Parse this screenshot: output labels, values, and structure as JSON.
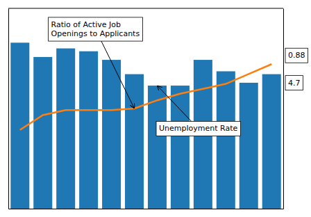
{
  "chart_data": {
    "type": "bar",
    "categories": [
      null,
      null,
      null,
      null,
      null,
      null,
      null,
      null,
      null,
      null,
      null,
      null
    ],
    "series": [
      {
        "type": "bar",
        "values": [
          5.8,
          5.3,
          5.6,
          5.5,
          5.2,
          4.7,
          4.3,
          4.3,
          5.2,
          4.8,
          4.4,
          4.7
        ]
      },
      {
        "type": "line",
        "axis": "y2",
        "values": [
          0.48,
          0.57,
          0.6,
          0.6,
          0.6,
          0.61,
          0.66,
          0.7,
          0.73,
          0.76,
          0.82,
          0.88
        ]
      }
    ],
    "ylim": [
      0,
      7.0
    ],
    "y2lim": [
      0.0,
      1.22
    ],
    "tick_labels": false,
    "annotations": [
      {
        "text": "Ratio of Active Job\nOpenings to Applicants",
        "series": 1,
        "index": 5
      },
      {
        "text": "Unemployment Rate",
        "series": 0,
        "index": 6
      },
      {
        "text": "0.88",
        "series": 1,
        "index": 11
      },
      {
        "text": "4.7",
        "series": 0,
        "index": 11
      }
    ]
  }
}
